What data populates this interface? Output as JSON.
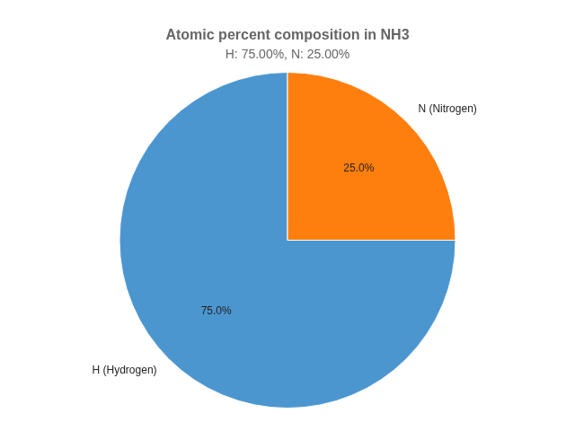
{
  "chart_data": {
    "type": "pie",
    "title": "Atomic percent composition in NH3",
    "subtitle": "H: 75.00%, N: 25.00%",
    "categories": [
      "H (Hydrogen)",
      "N (Nitrogen)"
    ],
    "values": [
      75.0,
      25.0
    ],
    "value_labels": [
      "75.0%",
      "25.0%"
    ],
    "colors": [
      "#4c96d0",
      "#ff7f0e"
    ],
    "data_labels": true
  }
}
